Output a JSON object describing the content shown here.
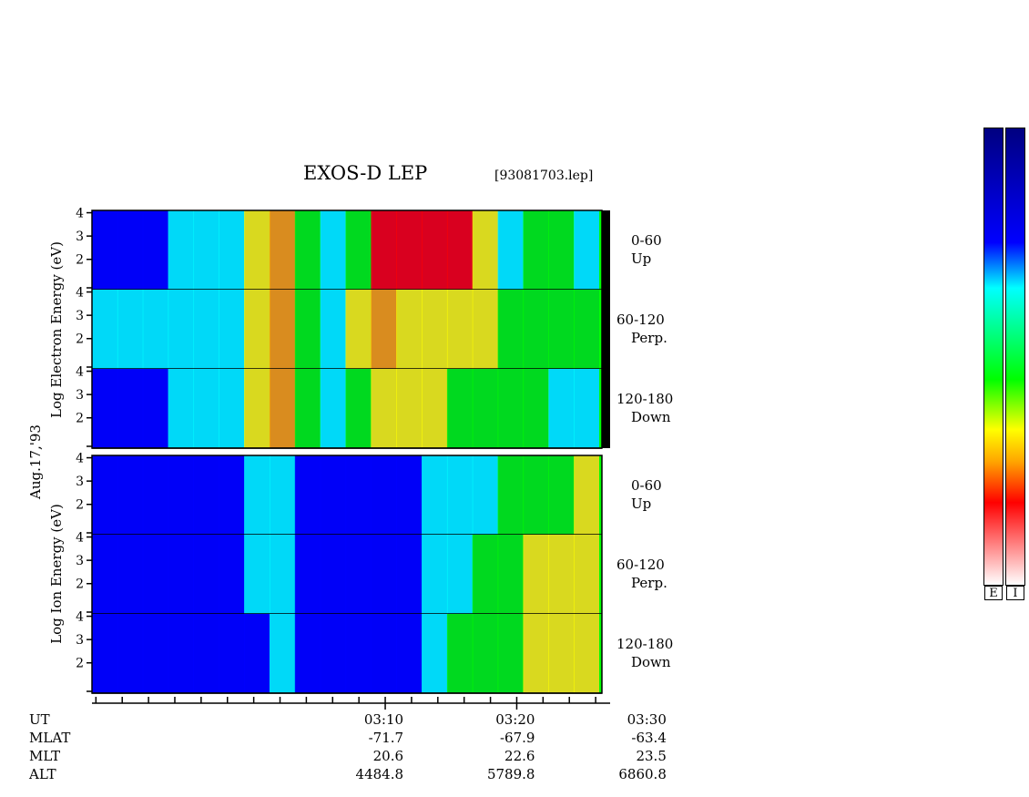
{
  "chart_data": {
    "type": "heatmap",
    "title": "EXOS-D LEP",
    "file_label": "[93081703.lep]",
    "date_label": "Aug.17,'93",
    "groups": [
      {
        "name": "electron",
        "ylabel_words": [
          "Log",
          "Electron",
          "Energy",
          "(eV)"
        ]
      },
      {
        "name": "ion",
        "ylabel_words": [
          "Log",
          "Ion",
          "Energy",
          "(eV)"
        ]
      }
    ],
    "panels": [
      {
        "group": "electron",
        "pitch_range": "0-60",
        "direction": "Up",
        "intensity": [
          0.2,
          0.2,
          0.2,
          0.25,
          0.25,
          0.3,
          0.55,
          0.75,
          0.4,
          0.3,
          0.5,
          0.8,
          0.85,
          0.85,
          0.8,
          0.6,
          0.3,
          0.5,
          0.4,
          0.35
        ]
      },
      {
        "group": "electron",
        "pitch_range": "60-120",
        "direction": "Perp.",
        "intensity": [
          0.25,
          0.25,
          0.25,
          0.25,
          0.25,
          0.3,
          0.55,
          0.75,
          0.45,
          0.35,
          0.55,
          0.65,
          0.6,
          0.6,
          0.55,
          0.55,
          0.5,
          0.45,
          0.45,
          0.45
        ]
      },
      {
        "group": "electron",
        "pitch_range": "120-180",
        "direction": "Down",
        "intensity": [
          0.2,
          0.2,
          0.2,
          0.25,
          0.25,
          0.3,
          0.55,
          0.75,
          0.45,
          0.35,
          0.5,
          0.6,
          0.55,
          0.55,
          0.5,
          0.45,
          0.4,
          0.4,
          0.35,
          0.35
        ]
      },
      {
        "group": "ion",
        "pitch_range": "0-60",
        "direction": "Up",
        "intensity": [
          0.2,
          0.2,
          0.2,
          0.2,
          0.2,
          0.2,
          0.25,
          0.25,
          0.2,
          0.2,
          0.2,
          0.2,
          0.2,
          0.25,
          0.3,
          0.35,
          0.4,
          0.45,
          0.5,
          0.55
        ]
      },
      {
        "group": "ion",
        "pitch_range": "60-120",
        "direction": "Perp.",
        "intensity": [
          0.2,
          0.2,
          0.2,
          0.2,
          0.2,
          0.2,
          0.25,
          0.25,
          0.2,
          0.2,
          0.2,
          0.2,
          0.2,
          0.3,
          0.35,
          0.45,
          0.5,
          0.55,
          0.55,
          0.6
        ]
      },
      {
        "group": "ion",
        "pitch_range": "120-180",
        "direction": "Down",
        "intensity": [
          0.2,
          0.2,
          0.2,
          0.2,
          0.2,
          0.2,
          0.2,
          0.25,
          0.2,
          0.2,
          0.2,
          0.2,
          0.2,
          0.3,
          0.4,
          0.45,
          0.5,
          0.55,
          0.55,
          0.6
        ]
      }
    ],
    "y_ticks": [
      "4",
      "3",
      "2"
    ],
    "y_tick_values": [
      4,
      3,
      2
    ],
    "ylim": [
      0.7,
      4.1
    ],
    "time_range_min": [
      -12.3,
      27.1
    ],
    "major_ticks_min": [
      10,
      20,
      30
    ],
    "minor_tick_step_min": 2,
    "footer": {
      "row_labels": [
        "UT",
        "MLAT",
        "MLT",
        "ALT"
      ],
      "columns": [
        {
          "UT": "03:10",
          "MLAT": "-71.7",
          "MLT": "20.6",
          "ALT": "4484.8"
        },
        {
          "UT": "03:20",
          "MLAT": "-67.9",
          "MLT": "22.6",
          "ALT": "5789.8"
        },
        {
          "UT": "03:30",
          "MLAT": "-63.4",
          "MLT": "23.5",
          "ALT": "6860.8"
        }
      ]
    },
    "colorbars": [
      {
        "label": "E"
      },
      {
        "label": "I"
      }
    ],
    "colorscale": [
      "#ffffff",
      "#ff0000",
      "#ffa500",
      "#ffff00",
      "#00ff00",
      "#00ffff",
      "#0000ff",
      "#00008b"
    ]
  }
}
